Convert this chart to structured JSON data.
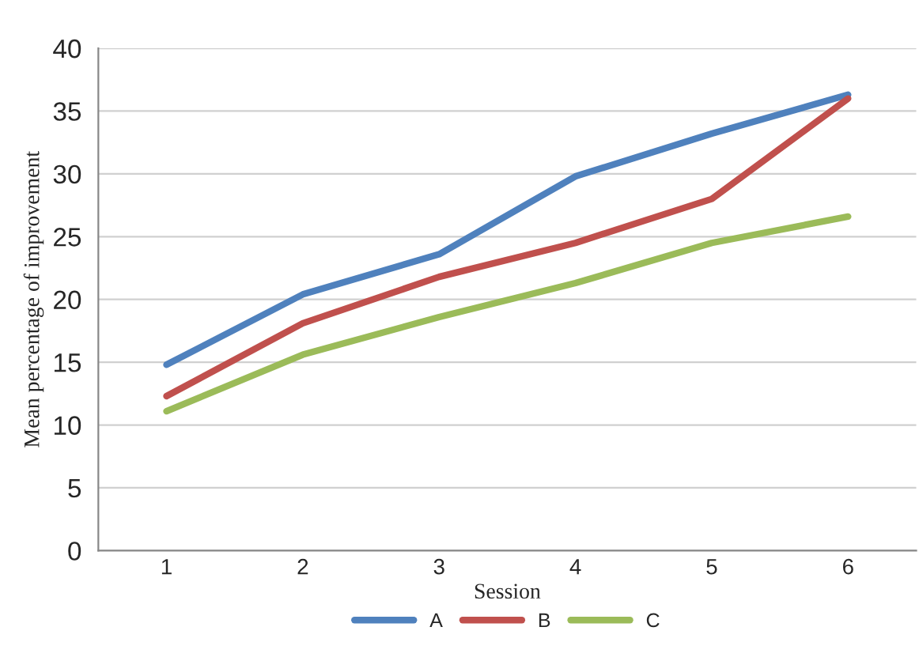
{
  "chart_data": {
    "type": "line",
    "xlabel": "Session",
    "ylabel": "Mean percentage of improvement",
    "categories": [
      "1",
      "2",
      "3",
      "4",
      "5",
      "6"
    ],
    "series": [
      {
        "name": "A",
        "color": "#4f81bd",
        "values": [
          14.8,
          20.4,
          23.6,
          29.8,
          33.2,
          36.3
        ]
      },
      {
        "name": "B",
        "color": "#c0504d",
        "values": [
          12.3,
          18.1,
          21.8,
          24.5,
          28.0,
          36.0
        ]
      },
      {
        "name": "C",
        "color": "#9bbb59",
        "values": [
          11.1,
          15.6,
          18.6,
          21.3,
          24.5,
          26.6
        ]
      }
    ],
    "ylim": [
      0,
      40
    ],
    "yticks": [
      0,
      5,
      10,
      15,
      20,
      25,
      30,
      35,
      40
    ],
    "grid": "y",
    "legend": "bottom",
    "marker": "none",
    "line_style": "solid"
  }
}
